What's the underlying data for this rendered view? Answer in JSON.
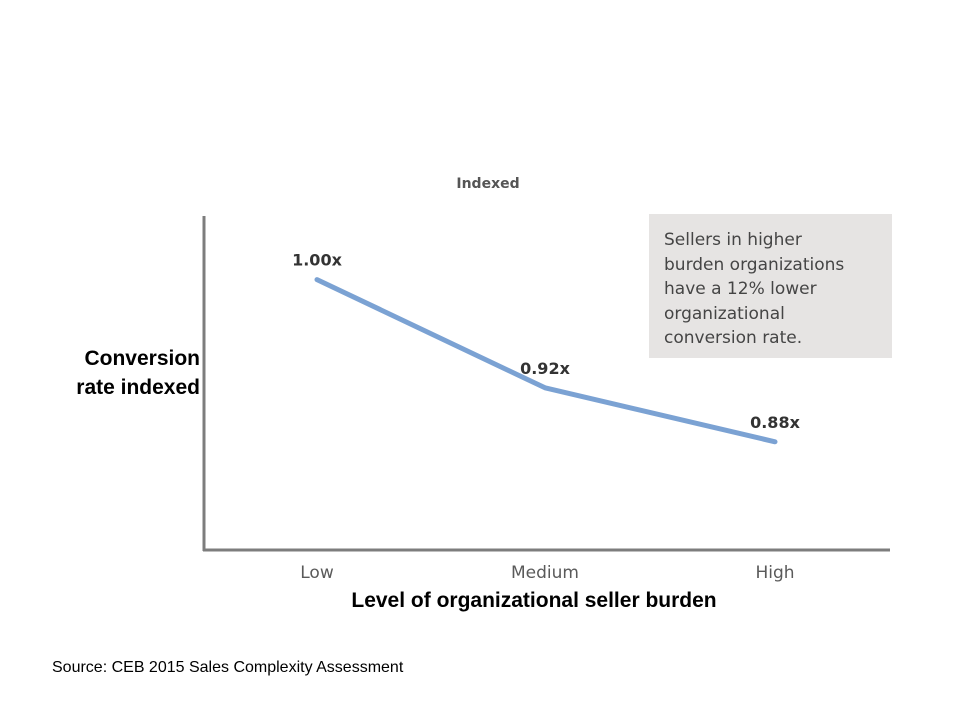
{
  "chart_data": {
    "type": "line",
    "subtitle": "Indexed",
    "categories": [
      "Low",
      "Medium",
      "High"
    ],
    "values": [
      1.0,
      0.92,
      0.88
    ],
    "data_labels": [
      "1.00x",
      "0.92x",
      "0.88x"
    ],
    "ylabel_lines": [
      "Conversion",
      "rate indexed"
    ],
    "xlabel": "Level of organizational seller burden",
    "ylim": [
      0.8,
      1.05
    ],
    "grid": false,
    "line_color": "#7ba2d3",
    "annotation_lines": [
      "Sellers in higher",
      "burden organizations",
      "have a 12% lower",
      "organizational",
      "conversion rate."
    ]
  },
  "source": "Source: CEB 2015 Sales Complexity Assessment"
}
